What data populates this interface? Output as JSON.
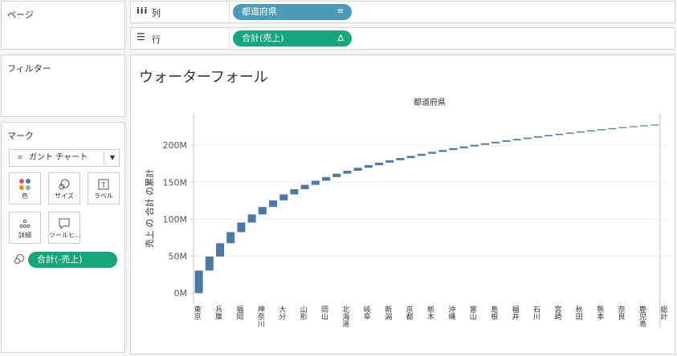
{
  "left_panel": {
    "pages_title": "ページ",
    "filters_title": "フィルター",
    "marks_title": "マーク",
    "mark_type": "ガント チャート",
    "mark_buttons": [
      "色",
      "サイズ",
      "ラベル",
      "詳細",
      "ツールヒ..."
    ],
    "size_pill": "合計(-売上)"
  },
  "shelves": {
    "columns_label": "列",
    "columns_pill": "都道府県",
    "rows_label": "行",
    "rows_pill": "合計(売上)",
    "rows_pill_delta": "Δ"
  },
  "view": {
    "title": "ウォーターフォール"
  },
  "colors": {
    "bar": "#4e79a7",
    "columns_pill": "#4a9bb8",
    "rows_pill": "#15a67a"
  },
  "chart_data": {
    "type": "bar",
    "subtype": "waterfall",
    "column_header": "都道府県",
    "ylabel": "売上 の 合計 の累計",
    "y_ticks": [
      "0M",
      "50M",
      "100M",
      "150M",
      "200M"
    ],
    "ylim": [
      -8,
      237
    ],
    "categories": [
      "東京",
      "",
      "兵庫",
      "",
      "福岡",
      "",
      "神奈川",
      "",
      "大分",
      "",
      "山形",
      "",
      "岡山",
      "",
      "北海道",
      "",
      "岐阜",
      "",
      "新潟",
      "",
      "京都",
      "",
      "栃木",
      "",
      "沖縄",
      "",
      "富山",
      "",
      "島根",
      "",
      "福井",
      "",
      "石川",
      "",
      "宮崎",
      "",
      "秋田",
      "",
      "熊本",
      "",
      "奈良",
      "",
      "鹿児島",
      "",
      "総計"
    ],
    "cumulative_values": [
      30.5,
      49.5,
      67.5,
      82.5,
      95.5,
      106.5,
      116.5,
      125.5,
      133.5,
      140.5,
      146.5,
      152,
      157,
      161.5,
      165.5,
      169.5,
      173,
      176.5,
      179.7,
      182.7,
      185.6,
      188.4,
      191,
      193.5,
      196,
      198.3,
      200.5,
      202.6,
      204.6,
      206.6,
      208.5,
      210.3,
      212.1,
      213.8,
      215.5,
      217.1,
      218.7,
      220.2,
      221.7,
      223.1,
      224.4,
      225.7,
      226.9,
      228
    ],
    "total_value": 228
  }
}
